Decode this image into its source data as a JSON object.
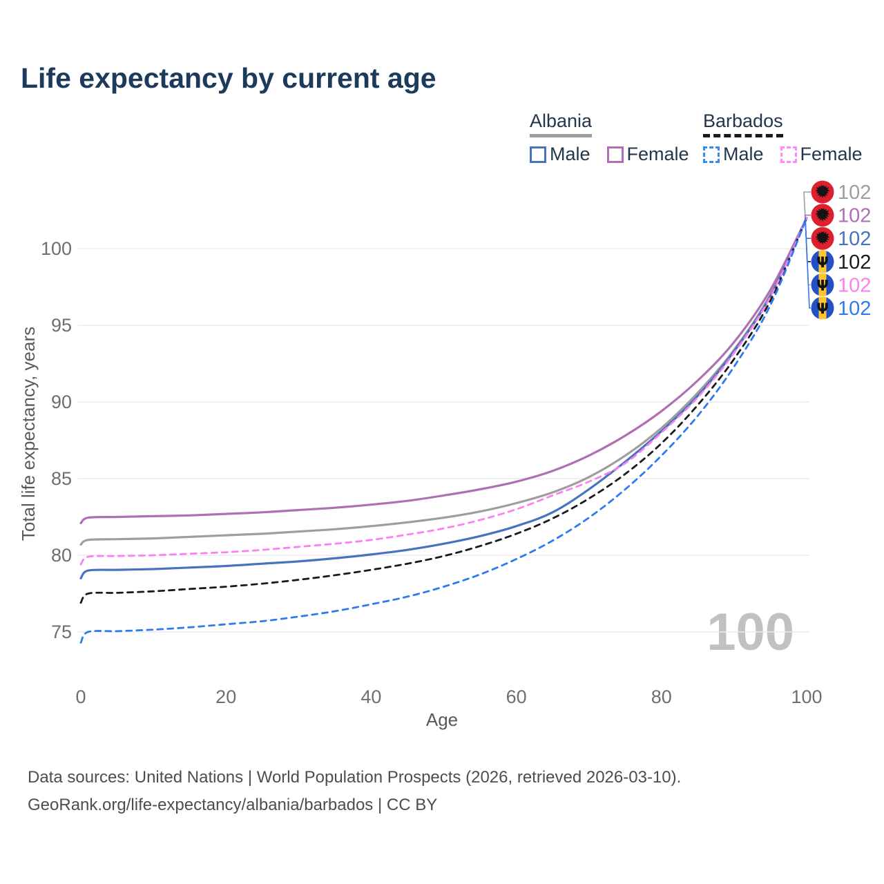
{
  "title": "Life expectancy by current age",
  "legend": {
    "groups": [
      {
        "label": "Albania",
        "line_style": "solid",
        "underline_color": "#9e9e9e",
        "items": [
          {
            "label": "Male",
            "color": "#4673bd"
          },
          {
            "label": "Female",
            "color": "#b06fb3"
          }
        ]
      },
      {
        "label": "Barbados",
        "line_style": "dashed",
        "underline_color": "#1a1a1a",
        "items": [
          {
            "label": "Male",
            "color": "#3d87f5"
          },
          {
            "label": "Female",
            "color": "#fb8df2"
          }
        ]
      }
    ]
  },
  "watermark_age": "100",
  "footer": {
    "line1": "Data sources: United Nations | World Population Prospects (2026, retrieved 2026-03-10).",
    "line2": "GeoRank.org/life-expectancy/albania/barbados | CC BY"
  },
  "icons": {
    "albania_flag": "albania-flag-icon",
    "barbados_flag": "barbados-flag-icon",
    "barbados_trident_glyph": "Ψ"
  },
  "flag_colors": {
    "albania": {
      "field": "#dd1f2e",
      "eagle": "#141414"
    },
    "barbados": {
      "blue": "#2150c8",
      "yellow": "#ffc72b",
      "trident": "#141414"
    }
  },
  "chart_data": {
    "type": "line",
    "title": "Life expectancy by current age",
    "xlabel": "Age",
    "ylabel": "Total life expectancy, years",
    "xticks": [
      0,
      20,
      40,
      60,
      80,
      100
    ],
    "yticks": [
      75,
      80,
      85,
      90,
      95,
      100
    ],
    "xlim": [
      0,
      100
    ],
    "ylim": [
      73,
      103
    ],
    "grid": "horizontal-only",
    "legend_position": "top-right",
    "ages": [
      0,
      1,
      5,
      10,
      15,
      20,
      25,
      30,
      35,
      40,
      45,
      50,
      55,
      60,
      65,
      70,
      75,
      80,
      85,
      90,
      95,
      100
    ],
    "series": [
      {
        "name": "Albania",
        "country": "Albania",
        "flag": "albania",
        "color": "#9e9e9e",
        "dashed": false,
        "end_label": "102",
        "values": [
          80.7,
          81.0,
          81.05,
          81.1,
          81.2,
          81.3,
          81.4,
          81.55,
          81.7,
          81.9,
          82.15,
          82.45,
          82.85,
          83.4,
          84.1,
          85.1,
          86.5,
          88.3,
          90.6,
          93.4,
          97.0,
          102
        ]
      },
      {
        "name": "Albania Female",
        "country": "Albania",
        "flag": "albania",
        "color": "#b06fb3",
        "dashed": false,
        "end_label": "102",
        "values": [
          82.1,
          82.45,
          82.5,
          82.55,
          82.6,
          82.7,
          82.8,
          82.95,
          83.1,
          83.3,
          83.55,
          83.9,
          84.3,
          84.8,
          85.5,
          86.5,
          87.8,
          89.4,
          91.4,
          93.9,
          97.3,
          102
        ]
      },
      {
        "name": "Albania Male",
        "country": "Albania",
        "flag": "albania",
        "color": "#4673bd",
        "dashed": false,
        "end_label": "102",
        "values": [
          78.5,
          79.0,
          79.05,
          79.1,
          79.2,
          79.3,
          79.45,
          79.6,
          79.8,
          80.05,
          80.35,
          80.75,
          81.25,
          81.9,
          82.8,
          84.3,
          86.1,
          88.1,
          90.4,
          93.3,
          96.9,
          102
        ]
      },
      {
        "name": "Barbados",
        "country": "Barbados",
        "flag": "barbados",
        "color": "#1a1a1a",
        "dashed": true,
        "end_label": "102",
        "values": [
          76.9,
          77.5,
          77.55,
          77.65,
          77.8,
          77.95,
          78.15,
          78.4,
          78.7,
          79.05,
          79.45,
          79.95,
          80.6,
          81.4,
          82.4,
          83.7,
          85.3,
          87.3,
          89.8,
          92.8,
          96.6,
          102
        ]
      },
      {
        "name": "Barbados Female",
        "country": "Barbados",
        "flag": "barbados",
        "color": "#fb80f0",
        "dashed": true,
        "end_label": "102",
        "values": [
          79.4,
          79.9,
          79.95,
          80.0,
          80.1,
          80.2,
          80.35,
          80.55,
          80.75,
          81.0,
          81.35,
          81.75,
          82.3,
          83.0,
          83.9,
          84.8,
          86.0,
          88.0,
          90.3,
          93.2,
          96.85,
          102
        ]
      },
      {
        "name": "Barbados Male",
        "country": "Barbados",
        "flag": "barbados",
        "color": "#2e7bf0",
        "dashed": true,
        "end_label": "102",
        "values": [
          74.3,
          75.0,
          75.05,
          75.15,
          75.3,
          75.5,
          75.7,
          76.0,
          76.35,
          76.8,
          77.3,
          77.95,
          78.75,
          79.75,
          80.95,
          82.45,
          84.3,
          86.5,
          89.1,
          92.3,
          96.3,
          102
        ]
      }
    ]
  }
}
